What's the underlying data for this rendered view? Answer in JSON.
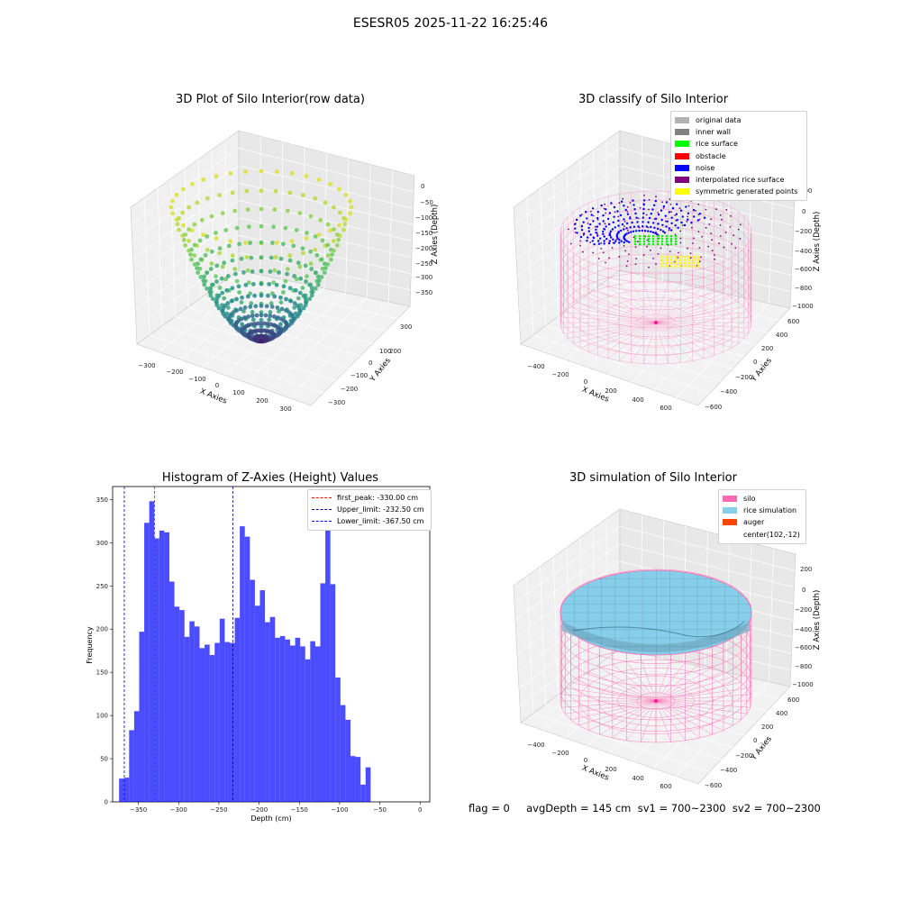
{
  "suptitle": "ESESR05 2025-11-22 16:25:46",
  "panels": {
    "raw": {
      "title": "3D Plot of Silo Interior(row data)",
      "xlabel": "X Axies",
      "ylabel": "Y Axies",
      "zlabel": "Z Axies (Depth)",
      "xticks": [
        "−300",
        "−200",
        "−100",
        "0",
        "100",
        "200",
        "300"
      ],
      "yticks": [
        "300",
        "200",
        "100",
        "0",
        "−100",
        "−200",
        "−300"
      ],
      "zticks": [
        "0",
        "−50",
        "−100",
        "−150",
        "−200",
        "−250",
        "−300",
        "−350"
      ]
    },
    "classify": {
      "title": "3D classify of Silo Interior",
      "xlabel": "X Axies",
      "ylabel": "Y Axies",
      "zlabel": "Z Axies (Depth)",
      "xticks": [
        "−400",
        "−200",
        "0",
        "200",
        "400",
        "600"
      ],
      "yticks": [
        "600",
        "400",
        "200",
        "0",
        "−200",
        "−400",
        "−600"
      ],
      "zticks": [
        "200",
        "0",
        "−200",
        "−400",
        "−600",
        "−800",
        "−1000"
      ],
      "legend": [
        {
          "label": "original data",
          "color": "#b3b3b3"
        },
        {
          "label": "inner wall",
          "color": "#808080"
        },
        {
          "label": "rice surface",
          "color": "#00ff00"
        },
        {
          "label": "obstacle",
          "color": "#ff0000"
        },
        {
          "label": "noise",
          "color": "#0000ff"
        },
        {
          "label": "interpolated rice surface",
          "color": "#800080"
        },
        {
          "label": "symmetric generated points",
          "color": "#ffff00"
        }
      ]
    },
    "simulation": {
      "title": "3D simulation of Silo Interior",
      "xlabel": "X Axies",
      "ylabel": "Y Axies",
      "zlabel": "Z Axies (Depth)",
      "xticks": [
        "−400",
        "−200",
        "0",
        "200",
        "400",
        "600"
      ],
      "yticks": [
        "600",
        "400",
        "200",
        "0",
        "−200",
        "−400",
        "−600"
      ],
      "zticks": [
        "200",
        "0",
        "−200",
        "−400",
        "−600",
        "−800",
        "−1000"
      ],
      "legend": [
        {
          "label": "silo",
          "color": "#ff69b4"
        },
        {
          "label": "rice simulation",
          "color": "#87ceeb"
        },
        {
          "label": "auger",
          "color": "#ff4500"
        },
        {
          "label": "center(102,-12)",
          "color": ""
        }
      ]
    }
  },
  "footer": "flag = 0     avgDepth = 145 cm  sv1 = 700~2300  sv2 = 700~2300",
  "chart_data": [
    {
      "type": "scatter",
      "title": "3D Plot of Silo Interior(row data)",
      "xlabel": "X Axies",
      "ylabel": "Y Axies",
      "zlabel": "Z Axies (Depth)",
      "xlim": [
        -360,
        360
      ],
      "ylim": [
        -360,
        360
      ],
      "zlim": [
        -375,
        10
      ],
      "colormap": "viridis"
    },
    {
      "type": "scatter",
      "title": "3D classify of Silo Interior",
      "xlabel": "X Axies",
      "ylabel": "Y Axies",
      "zlabel": "Z Axies (Depth)",
      "xlim": [
        -500,
        700
      ],
      "ylim": [
        -650,
        650
      ],
      "zlim": [
        -1000,
        200
      ],
      "series": [
        {
          "name": "original data",
          "color": "#b3b3b3"
        },
        {
          "name": "inner wall",
          "color": "#808080"
        },
        {
          "name": "rice surface",
          "color": "#00ff00"
        },
        {
          "name": "obstacle",
          "color": "#ff0000"
        },
        {
          "name": "noise",
          "color": "#0000ff"
        },
        {
          "name": "interpolated rice surface",
          "color": "#800080"
        },
        {
          "name": "symmetric generated points",
          "color": "#ffff00"
        }
      ],
      "legend_position": "upper right"
    },
    {
      "type": "bar",
      "title": "Histogram of Z-Axies (Height) Values",
      "xlabel": "Depth (cm)",
      "ylabel": "Frequency",
      "xlim": [
        -382,
        12
      ],
      "ylim": [
        0,
        365
      ],
      "xticks": [
        -350,
        -300,
        -250,
        -200,
        -150,
        -100,
        -50,
        0
      ],
      "yticks": [
        0,
        50,
        100,
        150,
        200,
        250,
        300,
        350
      ],
      "bin_start": -374,
      "bin_width": 6.25,
      "values": [
        27,
        28,
        83,
        105,
        197,
        323,
        348,
        305,
        314,
        312,
        255,
        226,
        222,
        191,
        209,
        203,
        178,
        182,
        170,
        184,
        212,
        185,
        184,
        213,
        319,
        307,
        257,
        227,
        245,
        208,
        214,
        190,
        192,
        188,
        181,
        190,
        180,
        165,
        186,
        180,
        253,
        323,
        252,
        144,
        112,
        95,
        53,
        52,
        20,
        40
      ],
      "bar_color": "#0000ff",
      "vlines": [
        {
          "name": "first_peak: -330.00 cm",
          "x": -330.0,
          "color": "#ff0000"
        },
        {
          "name": "Upper_limit: -232.50 cm",
          "x": -232.5,
          "color": "#00008b"
        },
        {
          "name": "Lower_limit: -367.50 cm",
          "x": -367.5,
          "color": "#0000ff"
        }
      ],
      "legend_position": "upper right"
    },
    {
      "type": "area",
      "title": "3D simulation of Silo Interior",
      "xlabel": "X Axies",
      "ylabel": "Y Axies",
      "zlabel": "Z Axies (Depth)",
      "xlim": [
        -500,
        700
      ],
      "ylim": [
        -650,
        650
      ],
      "zlim": [
        -1000,
        200
      ],
      "series": [
        {
          "name": "silo",
          "color": "#ff69b4"
        },
        {
          "name": "rice simulation",
          "color": "#87ceeb"
        },
        {
          "name": "auger",
          "color": "#ff4500"
        },
        {
          "name": "center(102,-12)"
        }
      ],
      "legend_position": "upper right"
    }
  ]
}
